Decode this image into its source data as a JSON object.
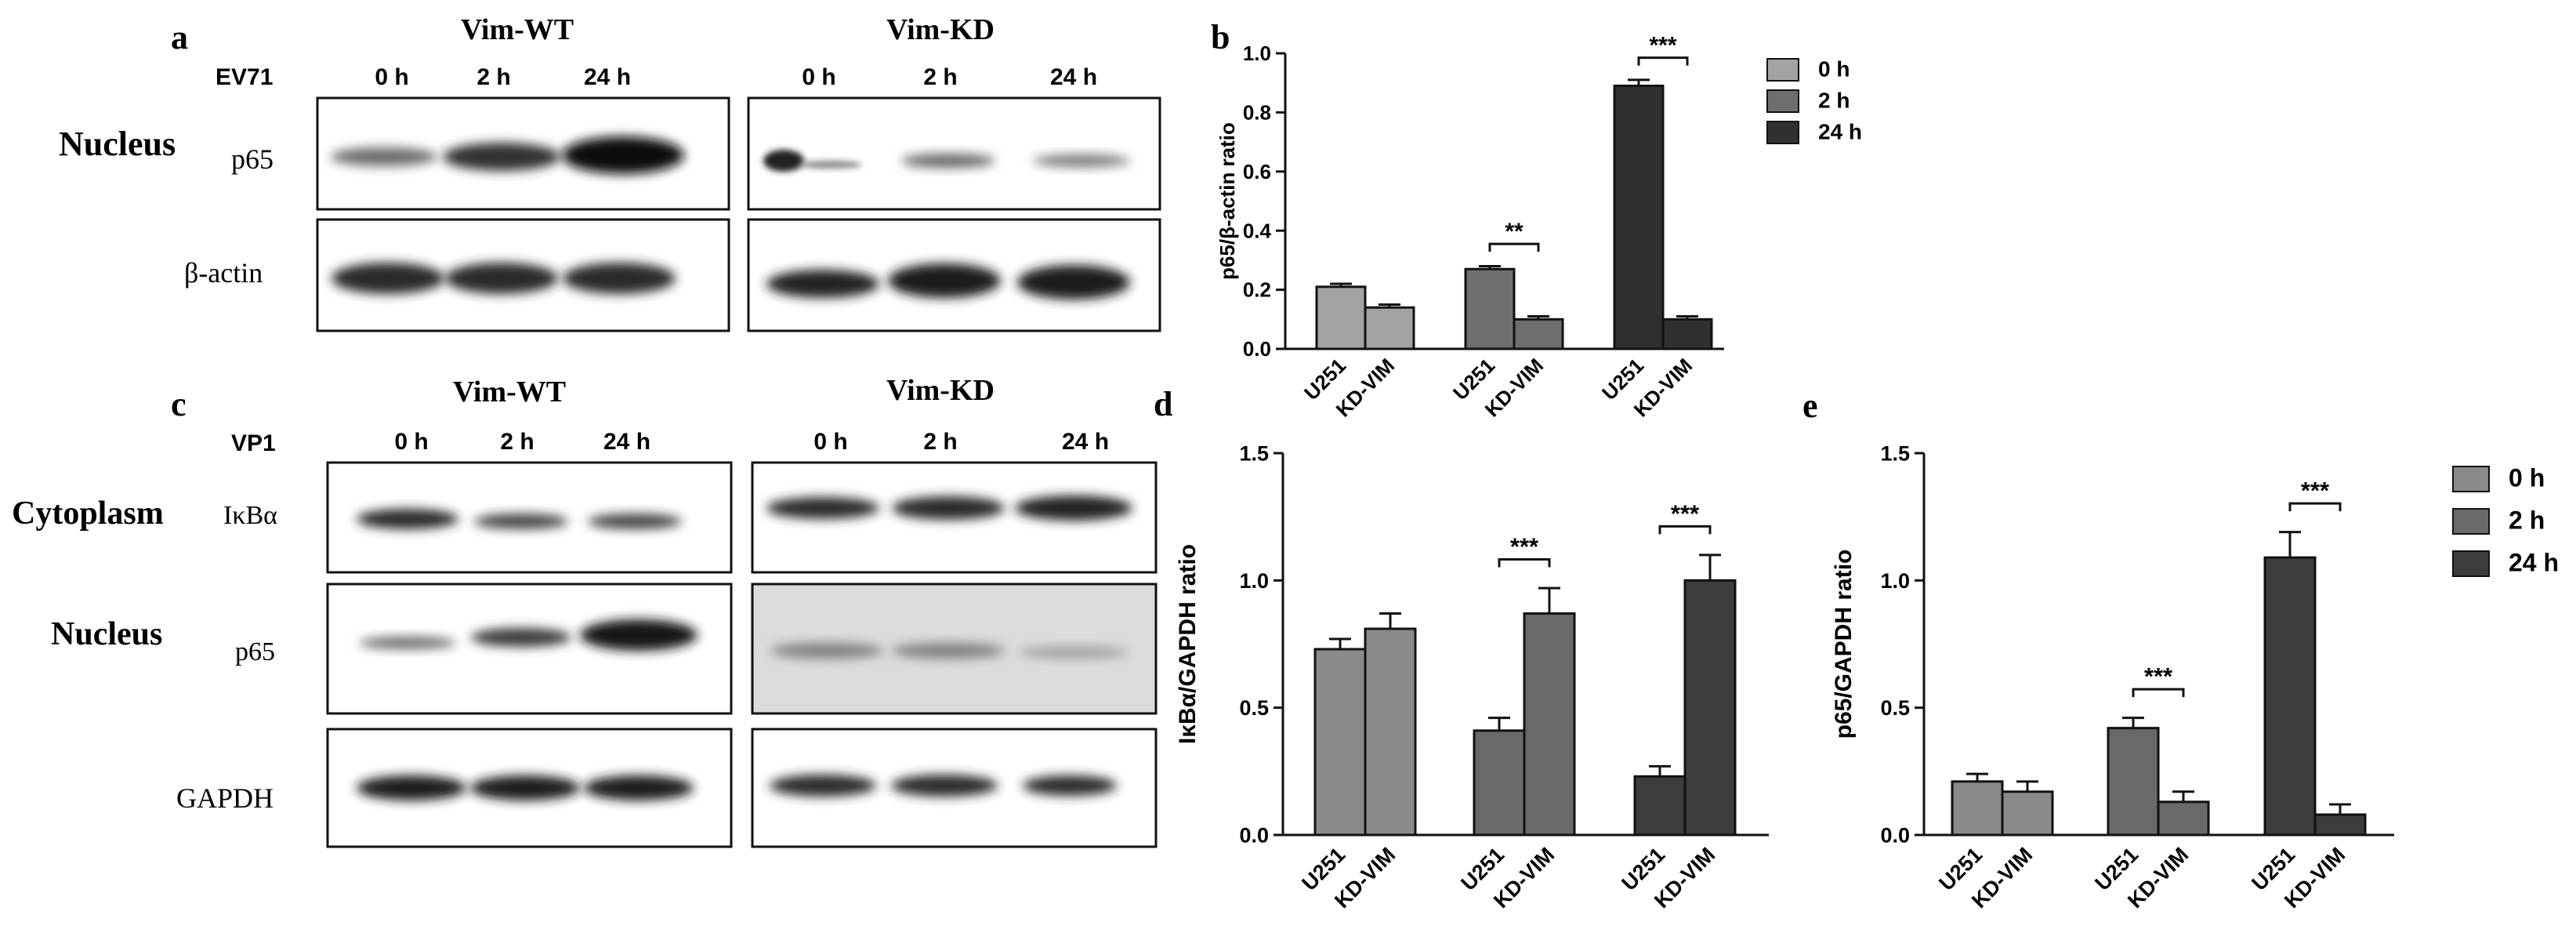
{
  "panels": {
    "a": {
      "letter": "a",
      "treatment": "EV71",
      "group_wt": "Vim-WT",
      "group_kd": "Vim-KD",
      "times": [
        "0 h",
        "2 h",
        "24 h"
      ],
      "compartment": "Nucleus",
      "rows": [
        "p65",
        "β-actin"
      ]
    },
    "c": {
      "letter": "c",
      "treatment": "VP1",
      "group_wt": "Vim-WT",
      "group_kd": "Vim-KD",
      "times": [
        "0 h",
        "2 h",
        "24 h"
      ],
      "compartment_1": "Cytoplasm",
      "compartment_2": "Nucleus",
      "rows": [
        "IκBα",
        "p65",
        "GAPDH"
      ]
    }
  },
  "chart_data": [
    {
      "panel": "b",
      "type": "bar",
      "ylabel": "p65/β-actin ratio",
      "ylim": [
        0,
        1.0
      ],
      "yticks": [
        "0.0",
        "0.2",
        "0.4",
        "0.6",
        "0.8",
        "1.0"
      ],
      "categories": [
        "U251",
        "KD-VIM",
        "U251",
        "KD-VIM",
        "U251",
        "KD-VIM"
      ],
      "groups": [
        "0 h",
        "2 h",
        "24 h"
      ],
      "values": [
        0.21,
        0.14,
        0.27,
        0.1,
        0.89,
        0.1
      ],
      "errors": [
        0.01,
        0.01,
        0.01,
        0.01,
        0.02,
        0.01
      ],
      "colors": [
        "#a3a3a3",
        "#a3a3a3",
        "#6e6e6e",
        "#6e6e6e",
        "#303030",
        "#303030"
      ],
      "significance": [
        {
          "pair": [
            2,
            3
          ],
          "label": "**"
        },
        {
          "pair": [
            4,
            5
          ],
          "label": "***"
        }
      ],
      "legend": [
        {
          "label": "0 h",
          "color": "#a3a3a3"
        },
        {
          "label": "2 h",
          "color": "#6e6e6e"
        },
        {
          "label": "24 h",
          "color": "#303030"
        }
      ],
      "legend_position": "right"
    },
    {
      "panel": "d",
      "type": "bar",
      "ylabel": "IκBα/GAPDH ratio",
      "ylim": [
        0,
        1.5
      ],
      "yticks": [
        "0.0",
        "0.5",
        "1.0",
        "1.5"
      ],
      "categories": [
        "U251",
        "KD-VIM",
        "U251",
        "KD-VIM",
        "U251",
        "KD-VIM"
      ],
      "groups": [
        "0 h",
        "2 h",
        "24 h"
      ],
      "values": [
        0.73,
        0.81,
        0.41,
        0.87,
        0.23,
        1.0
      ],
      "errors": [
        0.04,
        0.06,
        0.05,
        0.1,
        0.04,
        0.1
      ],
      "colors": [
        "#8a8a8a",
        "#8a8a8a",
        "#696969",
        "#696969",
        "#3c3c3c",
        "#3c3c3c"
      ],
      "significance": [
        {
          "pair": [
            2,
            3
          ],
          "label": "***"
        },
        {
          "pair": [
            4,
            5
          ],
          "label": "***"
        }
      ]
    },
    {
      "panel": "e",
      "type": "bar",
      "ylabel": "p65/GAPDH ratio",
      "ylim": [
        0,
        1.5
      ],
      "yticks": [
        "0.0",
        "0.5",
        "1.0",
        "1.5"
      ],
      "categories": [
        "U251",
        "KD-VIM",
        "U251",
        "KD-VIM",
        "U251",
        "KD-VIM"
      ],
      "groups": [
        "0 h",
        "2 h",
        "24 h"
      ],
      "values": [
        0.21,
        0.17,
        0.42,
        0.13,
        1.09,
        0.08
      ],
      "errors": [
        0.03,
        0.04,
        0.04,
        0.04,
        0.1,
        0.04
      ],
      "colors": [
        "#8a8a8a",
        "#8a8a8a",
        "#696969",
        "#696969",
        "#3c3c3c",
        "#3c3c3c"
      ],
      "significance": [
        {
          "pair": [
            2,
            3
          ],
          "label": "***"
        },
        {
          "pair": [
            4,
            5
          ],
          "label": "***"
        }
      ],
      "legend": [
        {
          "label": "0 h",
          "color": "#8a8a8a"
        },
        {
          "label": "2 h",
          "color": "#696969"
        },
        {
          "label": "24 h",
          "color": "#3c3c3c"
        }
      ],
      "legend_position": "right"
    }
  ]
}
